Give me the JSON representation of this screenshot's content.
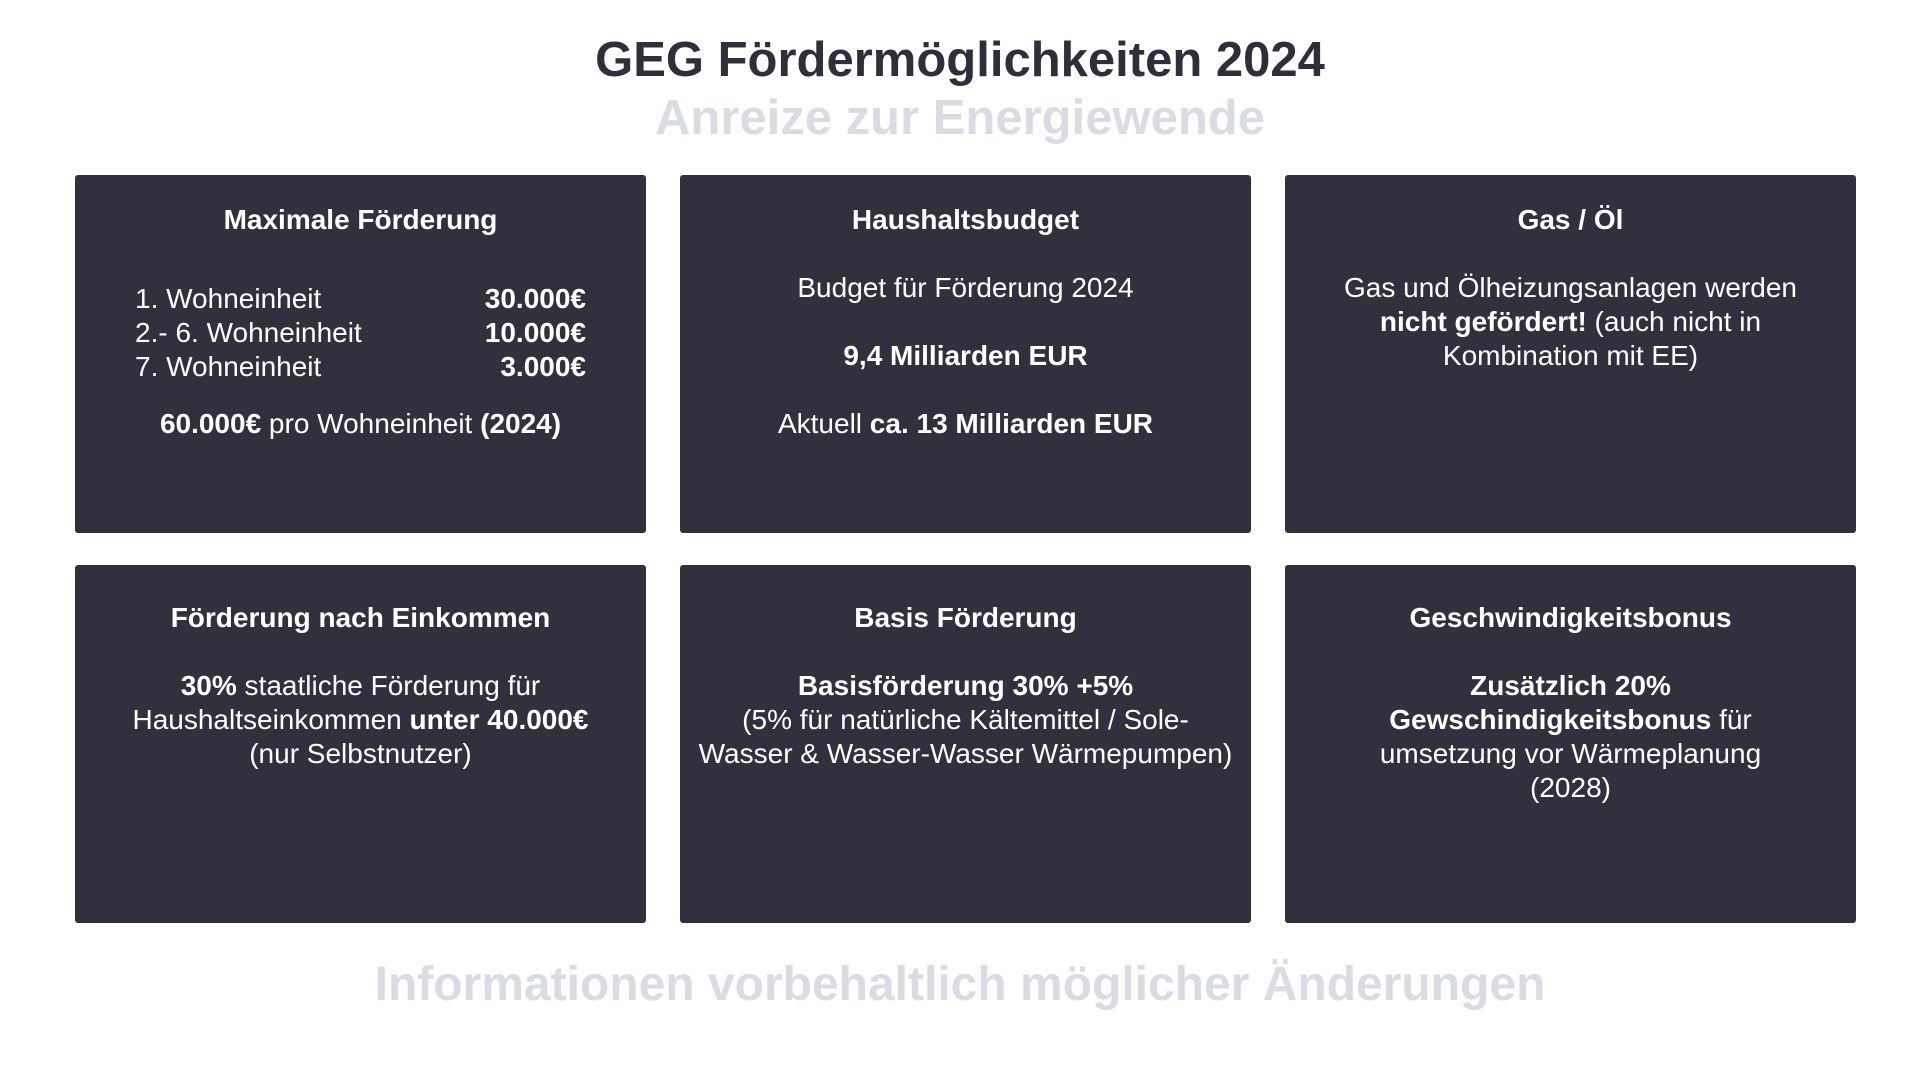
{
  "header": {
    "title": "GEG Fördermöglichkeiten 2024",
    "subtitle": "Anreize zur Energiewende"
  },
  "cards": {
    "max": {
      "title": "Maximale Förderung",
      "rows": [
        {
          "label": "1. Wohneinheit",
          "amount": "30.000€"
        },
        {
          "label": "2.- 6. Wohneinheit",
          "amount": "10.000€"
        },
        {
          "label": "7. Wohneinheit",
          "amount": "3.000€"
        }
      ],
      "total_amount": "60.000€",
      "total_text": " pro Wohneinheit ",
      "total_year": "(2024)"
    },
    "budget": {
      "title": "Haushaltsbudget",
      "line1": "Budget für Förderung 2024",
      "line2": "9,4 Milliarden EUR",
      "line3_prefix": "Aktuell ",
      "line3_value": "ca. 13 Milliarden EUR"
    },
    "gas": {
      "title": "Gas / Öl",
      "line1": "Gas und Ölheizungsanlagen werden",
      "line2_bold": "nicht gefördert!",
      "line2_rest": " (auch nicht in",
      "line3": "Kombination mit EE)"
    },
    "income": {
      "title": "Förderung nach Einkommen",
      "line1_bold": "30%",
      "line1_rest": " staatliche Förderung für",
      "line2_prefix": "Haushaltseinkommen ",
      "line2_bold": "unter 40.000€",
      "line3": "(nur Selbstnutzer)"
    },
    "basis": {
      "title": "Basis Förderung",
      "line1": "Basisförderung 30% +5%",
      "line2": "(5% für natürliche Kältemittel / Sole-",
      "line3": "Wasser & Wasser-Wasser Wärmepumpen)"
    },
    "speed": {
      "title": "Geschwindigkeitsbonus",
      "line1": "Zusätzlich 20%",
      "line2_bold": "Gewschindigkeitsbonus",
      "line2_rest": " für",
      "line3": "umsetzung vor Wärmeplanung",
      "line4": "(2028)"
    }
  },
  "footer": {
    "text": "Informationen vorbehaltlich möglicher Änderungen"
  }
}
